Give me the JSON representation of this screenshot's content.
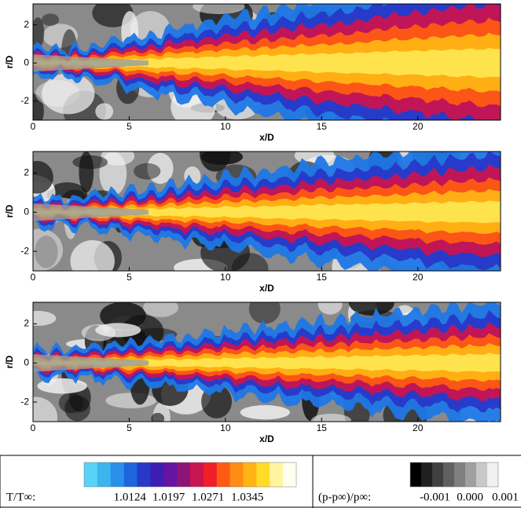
{
  "panels": [
    {
      "xlabel": "x/D",
      "ylabel": "r/D",
      "xlim": [
        0,
        24.3
      ],
      "ylim": [
        -3,
        3.1
      ],
      "xticks": [
        0,
        5,
        10,
        15,
        20
      ],
      "yticks": [
        -2,
        0,
        2
      ]
    },
    {
      "xlabel": "x/D",
      "ylabel": "r/D",
      "xlim": [
        0,
        24.3
      ],
      "ylim": [
        -3,
        3.1
      ],
      "xticks": [
        0,
        5,
        10,
        15,
        20
      ],
      "yticks": [
        -2,
        0,
        2
      ]
    },
    {
      "xlabel": "x/D",
      "ylabel": "r/D",
      "xlim": [
        0,
        24.3
      ],
      "ylim": [
        -3,
        3.1
      ],
      "xticks": [
        0,
        5,
        10,
        15,
        20
      ],
      "yticks": [
        -2,
        0,
        2
      ]
    }
  ],
  "legend": {
    "temperature": {
      "label": "T/T∞:",
      "lim": [
        1.0038,
        1.0437
      ],
      "ticks": [
        1.0124,
        1.0197,
        1.0271,
        1.0345
      ],
      "colors": [
        "#5ad2f5",
        "#3cb4f0",
        "#2890e8",
        "#1e64dc",
        "#2838c8",
        "#3c1eb4",
        "#6414a0",
        "#8c1478",
        "#c81450",
        "#f01e28",
        "#ff5a14",
        "#ff8c14",
        "#ffb414",
        "#ffdc28",
        "#fff5a0",
        "#fffff0"
      ]
    },
    "pressure": {
      "label": "(p-p∞)/p∞:",
      "lim": [
        -0.0017,
        0.0008
      ],
      "ticks": [
        -0.001,
        {
          "value": 0,
          "label": "0.000"
        },
        0.001
      ],
      "colors": [
        "#000000",
        "#202020",
        "#404040",
        "#606060",
        "#808080",
        "#a0a0a0",
        "#c8c8c8",
        "#f0f0f0"
      ]
    }
  }
}
